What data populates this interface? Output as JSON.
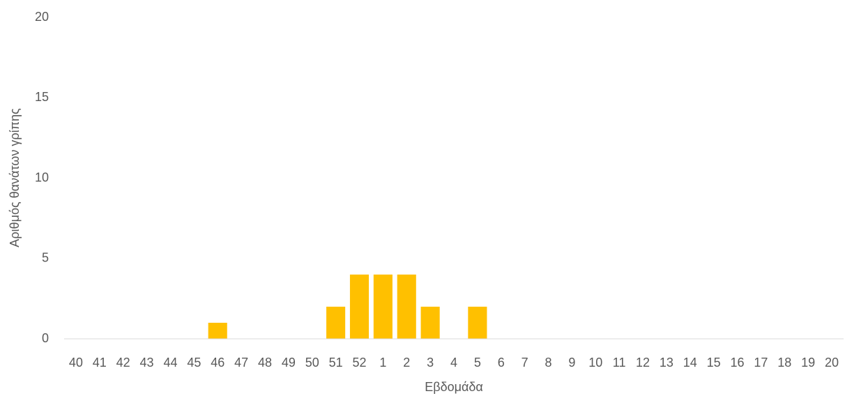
{
  "chart_data": {
    "type": "bar",
    "x_label": "Εβδομάδα",
    "y_label": "Αριθμός θανάτων γρίπης",
    "categories": [
      "40",
      "41",
      "42",
      "43",
      "44",
      "45",
      "46",
      "47",
      "48",
      "49",
      "50",
      "51",
      "52",
      "1",
      "2",
      "3",
      "4",
      "5",
      "6",
      "7",
      "8",
      "9",
      "10",
      "11",
      "12",
      "13",
      "14",
      "15",
      "16",
      "17",
      "18",
      "19",
      "20"
    ],
    "values": [
      0,
      0,
      0,
      0,
      0,
      0,
      1,
      0,
      0,
      0,
      0,
      2,
      4,
      4,
      4,
      2,
      0,
      2,
      0,
      0,
      0,
      0,
      0,
      0,
      0,
      0,
      0,
      0,
      0,
      0,
      0,
      0,
      0
    ],
    "color": "#ffc000",
    "ylim": [
      0,
      20
    ],
    "yticks": [
      0,
      5,
      10,
      15,
      20
    ],
    "grid": false
  }
}
